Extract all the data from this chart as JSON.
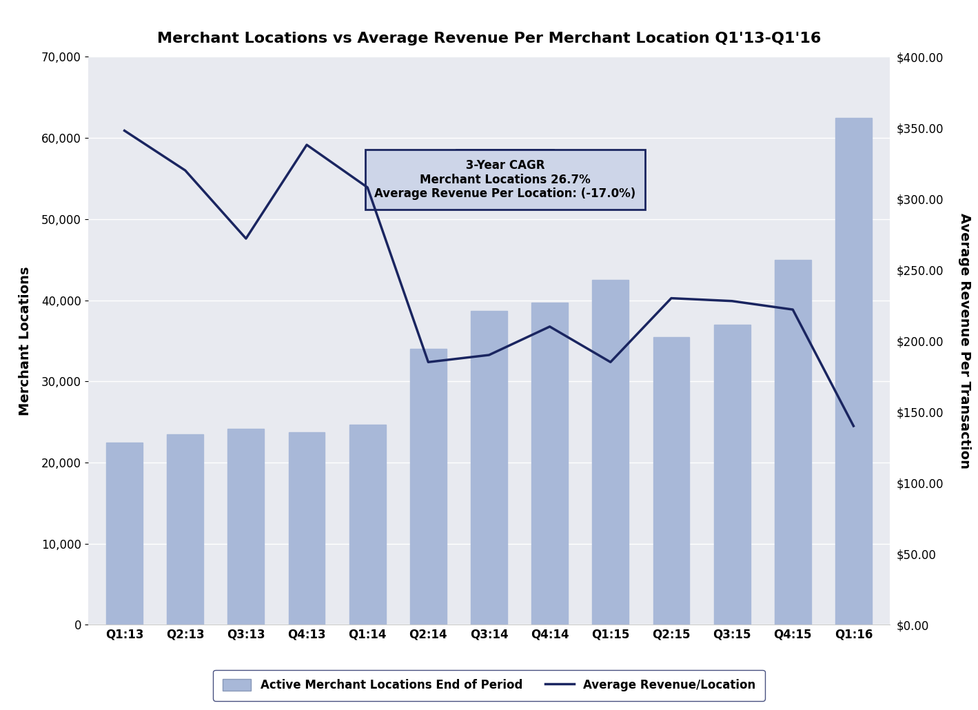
{
  "categories": [
    "Q1:13",
    "Q2:13",
    "Q3:13",
    "Q4:13",
    "Q1:14",
    "Q2:14",
    "Q3:14",
    "Q4:14",
    "Q1:15",
    "Q2:15",
    "Q3:15",
    "Q4:15",
    "Q1:16"
  ],
  "bar_values": [
    22500,
    23500,
    24200,
    23700,
    24700,
    34000,
    38700,
    39700,
    42500,
    35500,
    37000,
    45000,
    62500
  ],
  "line_values": [
    348,
    320,
    272,
    338,
    308,
    185,
    190,
    210,
    185,
    230,
    228,
    222,
    140
  ],
  "bar_color": "#a8b8d8",
  "line_color": "#1a2560",
  "title": "Merchant Locations vs Average Revenue Per Merchant Location Q1'13-Q1'16",
  "ylabel_left": "Merchant Locations",
  "ylabel_right": "Average Revenue Per Transaction",
  "ylim_left": [
    0,
    70000
  ],
  "ylim_right": [
    0,
    400
  ],
  "yticks_left": [
    0,
    10000,
    20000,
    30000,
    40000,
    50000,
    60000,
    70000
  ],
  "yticks_right": [
    0,
    50,
    100,
    150,
    200,
    250,
    300,
    350,
    400
  ],
  "annotation_line1": "Merchant Locations 26.7%",
  "annotation_line2": "Average Revenue Per Location: (-17.0%)",
  "legend_bar_label": "Active Merchant Locations End of Period",
  "legend_line_label": "Average Revenue/Location",
  "background_color": "#ffffff",
  "plot_bg_color": "#e8eaf0"
}
